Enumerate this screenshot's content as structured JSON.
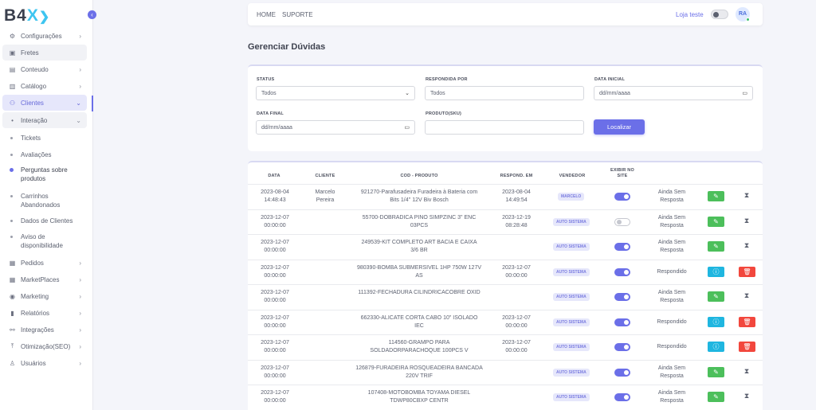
{
  "brand": {
    "logo_main": "B4",
    "logo_accent": "X",
    "logo_chevron": "❯"
  },
  "sidebar": {
    "collapse_icon": "chevron-left-icon",
    "items": [
      {
        "label": "Configurações",
        "icon": "gear-icon",
        "chevron": true
      },
      {
        "label": "Fretes",
        "icon": "box-icon",
        "chevron": false
      },
      {
        "label": "Conteudo",
        "icon": "layout-icon",
        "chevron": true
      },
      {
        "label": "Catálogo",
        "icon": "book-icon",
        "chevron": true
      },
      {
        "label": "Clientes",
        "icon": "users-icon",
        "chevron": true
      },
      {
        "label": "Interação",
        "icon": "dot-icon",
        "chevron": true
      }
    ],
    "subitems": [
      {
        "label": "Tickets"
      },
      {
        "label": "Avaliações"
      },
      {
        "label": "Perguntas sobre produtos"
      },
      {
        "label": "Carrinhos Abandonados"
      },
      {
        "label": "Dados de Clientes"
      },
      {
        "label": "Aviso de disponibilidade"
      }
    ],
    "lower_items": [
      {
        "label": "Pedidos",
        "icon": "cart-icon"
      },
      {
        "label": "MarketPlaces",
        "icon": "grid-icon"
      },
      {
        "label": "Marketing",
        "icon": "megaphone-icon"
      },
      {
        "label": "Relatórios",
        "icon": "bar-chart-icon"
      },
      {
        "label": "Integrações",
        "icon": "network-icon"
      },
      {
        "label": "Otimização(SEO)",
        "icon": "upload-icon"
      },
      {
        "label": "Usuários",
        "icon": "user-icon"
      }
    ]
  },
  "topbar": {
    "links": [
      "HOME",
      "SUPORTE"
    ],
    "store_label": "Loja teste",
    "store_toggle_on": false,
    "avatar_initials": "RA"
  },
  "page": {
    "title": "Gerenciar Dúvidas"
  },
  "filters": {
    "status_label": "STATUS",
    "status_value": "Todos",
    "answered_by_label": "RESPONDIDA POR",
    "answered_by_value": "Todos",
    "start_date_label": "DATA INICIAL",
    "start_date_placeholder": "dd/mm/aaaa",
    "end_date_label": "DATA FINAL",
    "end_date_placeholder": "dd/mm/aaaa",
    "product_label": "PRODUTO(SKU)",
    "product_value": "",
    "search_button": "Localizar"
  },
  "table": {
    "headers": {
      "date": "DATA",
      "client": "CLIENTE",
      "product": "COD - PRODUTO",
      "answered_at": "RESPOND. EM",
      "seller": "VENDEDOR",
      "show_on_site_1": "EXIBIR NO",
      "show_on_site_2": "SITE"
    },
    "rows": [
      {
        "date": "2023-08-04",
        "time": "14:48:43",
        "client1": "Marcelo",
        "client2": "Pereira",
        "product1": "921270-Parafusadeira Furadeira à Bateria com",
        "product2": "Bits 1/4'' 12V Biv Bosch",
        "ans_date": "2023-08-04",
        "ans_time": "14:49:54",
        "seller": "MARCELO",
        "show": true,
        "status1": "Ainda Sem",
        "status2": "Resposta",
        "answered": false
      },
      {
        "date": "2023-12-07",
        "time": "00:00:00",
        "client1": "",
        "client2": "",
        "product1": "55700-DOBRADICA PINO SIMPZINC 3\" ENC",
        "product2": "03PCS",
        "ans_date": "2023-12-19",
        "ans_time": "08:28:48",
        "seller": "AUTO SISTEMA",
        "show": false,
        "status1": "Ainda Sem",
        "status2": "Resposta",
        "answered": false
      },
      {
        "date": "2023-12-07",
        "time": "00:00:00",
        "client1": "",
        "client2": "",
        "product1": "249539-KIT COMPLETO ART BACIA E CAIXA",
        "product2": "3/6 BR",
        "ans_date": "",
        "ans_time": "",
        "seller": "AUTO SISTEMA",
        "show": true,
        "status1": "Ainda Sem",
        "status2": "Resposta",
        "answered": false
      },
      {
        "date": "2023-12-07",
        "time": "00:00:00",
        "client1": "",
        "client2": "",
        "product1": "980390-BOMBA SUBMERSIVEL 1HP 750W 127V",
        "product2": "AS",
        "ans_date": "2023-12-07",
        "ans_time": "00:00:00",
        "seller": "AUTO SISTEMA",
        "show": true,
        "status1": "Respondido",
        "status2": "",
        "answered": true
      },
      {
        "date": "2023-12-07",
        "time": "00:00:00",
        "client1": "",
        "client2": "",
        "product1": "111392-FECHADURA CILINDRICACOBRE OXID",
        "product2": "",
        "ans_date": "",
        "ans_time": "",
        "seller": "AUTO SISTEMA",
        "show": true,
        "status1": "Ainda Sem",
        "status2": "Resposta",
        "answered": false
      },
      {
        "date": "2023-12-07",
        "time": "00:00:00",
        "client1": "",
        "client2": "",
        "product1": "662330-ALICATE CORTA CABO 10\" ISOLADO",
        "product2": "IEC",
        "ans_date": "2023-12-07",
        "ans_time": "00:00:00",
        "seller": "AUTO SISTEMA",
        "show": true,
        "status1": "Respondido",
        "status2": "",
        "answered": true
      },
      {
        "date": "2023-12-07",
        "time": "00:00:00",
        "client1": "",
        "client2": "",
        "product1": "114560-GRAMPO PARA",
        "product2": "SOLDADORPARACHOQUE 100PCS V",
        "ans_date": "2023-12-07",
        "ans_time": "00:00:00",
        "seller": "AUTO SISTEMA",
        "show": true,
        "status1": "Respondido",
        "status2": "",
        "answered": true
      },
      {
        "date": "2023-12-07",
        "time": "00:00:00",
        "client1": "",
        "client2": "",
        "product1": "126879-FURADEIRA ROSQUEADEIRA BANCADA",
        "product2": "220V TRIF",
        "ans_date": "",
        "ans_time": "",
        "seller": "AUTO SISTEMA",
        "show": true,
        "status1": "Ainda Sem",
        "status2": "Resposta",
        "answered": false
      },
      {
        "date": "2023-12-07",
        "time": "00:00:00",
        "client1": "",
        "client2": "",
        "product1": "107408-MOTOBOMBA TOYAMA DIESEL",
        "product2": "TDWP80CBXP CENTR",
        "ans_date": "",
        "ans_time": "",
        "seller": "AUTO SISTEMA",
        "show": true,
        "status1": "Ainda Sem",
        "status2": "Resposta",
        "answered": false
      }
    ]
  },
  "colors": {
    "accent": "#6b6fe8",
    "edit": "#4cbf5b",
    "info": "#1fb6e0",
    "delete": "#f2473d"
  }
}
